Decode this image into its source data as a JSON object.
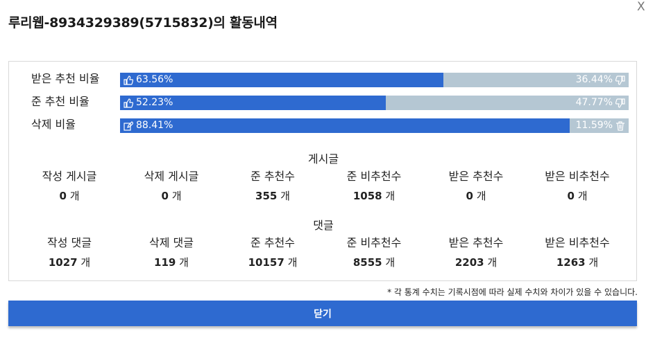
{
  "title": "루리웹-8934329389(5715832)의 활동내역",
  "close_x": "X",
  "bars": [
    {
      "label": "받은 추천 비율",
      "left_text": "63.56%",
      "right_text": "36.44%",
      "fraction": 0.6356,
      "left_icon": "thumbs-up-icon",
      "right_icon": "thumbs-down-icon"
    },
    {
      "label": "준 추천 비율",
      "left_text": "52.23%",
      "right_text": "47.77%",
      "fraction": 0.5223,
      "left_icon": "thumbs-up-icon",
      "right_icon": "thumbs-down-icon"
    },
    {
      "label": "삭제 비율",
      "left_text": "88.41%",
      "right_text": "11.59%",
      "fraction": 0.8841,
      "left_icon": "edit-icon",
      "right_icon": "trash-icon"
    }
  ],
  "posts": {
    "title": "게시글",
    "stats": [
      {
        "label": "작성 게시글",
        "value": "0",
        "unit": "개"
      },
      {
        "label": "삭제 게시글",
        "value": "0",
        "unit": "개"
      },
      {
        "label": "준 추천수",
        "value": "355",
        "unit": "개"
      },
      {
        "label": "준 비추천수",
        "value": "1058",
        "unit": "개"
      },
      {
        "label": "받은 추천수",
        "value": "0",
        "unit": "개"
      },
      {
        "label": "받은 비추천수",
        "value": "0",
        "unit": "개"
      }
    ]
  },
  "comments": {
    "title": "댓글",
    "stats": [
      {
        "label": "작성 댓글",
        "value": "1027",
        "unit": "개"
      },
      {
        "label": "삭제 댓글",
        "value": "119",
        "unit": "개"
      },
      {
        "label": "준 추천수",
        "value": "10157",
        "unit": "개"
      },
      {
        "label": "준 비추천수",
        "value": "8555",
        "unit": "개"
      },
      {
        "label": "받은 추천수",
        "value": "2203",
        "unit": "개"
      },
      {
        "label": "받은 비추천수",
        "value": "1263",
        "unit": "개"
      }
    ]
  },
  "note": "* 각 통계 수치는 기록시점에 따라 실제 수치와 차이가 있을 수 있습니다.",
  "close_button": "닫기",
  "colors": {
    "accent": "#2e6ad0",
    "track": "#b5c7d3"
  }
}
